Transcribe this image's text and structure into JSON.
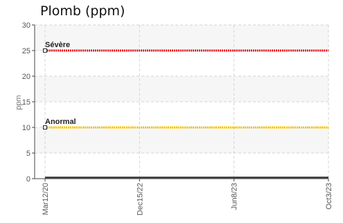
{
  "chart_data": {
    "type": "line",
    "title": "Plomb (ppm)",
    "xlabel": "",
    "ylabel": "ppm",
    "ylim": [
      0,
      30
    ],
    "yticks": [
      0,
      5,
      10,
      15,
      20,
      25,
      30
    ],
    "x_ticks": [
      "Mar12/20",
      "Dec15/22",
      "Jun8/23",
      "Oct3/23"
    ],
    "grid": true,
    "series": [
      {
        "values": [
          0,
          0,
          0,
          0
        ],
        "color": "#444444"
      }
    ],
    "thresholds": [
      {
        "label": "Sévère",
        "value": 25,
        "color": "#e8141b"
      },
      {
        "label": "Anormal",
        "value": 10,
        "color": "#f5c200"
      }
    ]
  }
}
